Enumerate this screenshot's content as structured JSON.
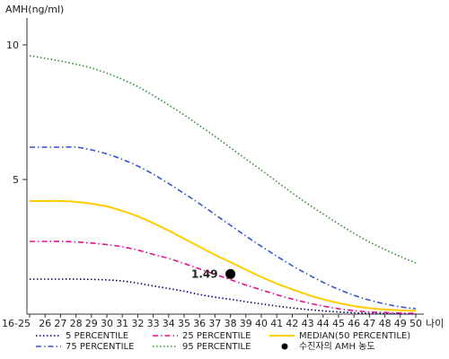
{
  "chart_data": {
    "type": "line",
    "ylabel": "AMH(ng/ml)",
    "xlabel": "나이",
    "ylim": [
      0,
      11
    ],
    "y_ticks": [
      5,
      10
    ],
    "categories": [
      "16-25",
      "26",
      "27",
      "28",
      "29",
      "30",
      "31",
      "32",
      "33",
      "34",
      "35",
      "36",
      "37",
      "38",
      "39",
      "40",
      "41",
      "42",
      "43",
      "44",
      "45",
      "46",
      "47",
      "48",
      "49",
      "50"
    ],
    "series": [
      {
        "name": "5 PERCENTILE",
        "color": "#000080",
        "dash": "dotted",
        "values": [
          1.3,
          1.3,
          1.3,
          1.3,
          1.29,
          1.27,
          1.23,
          1.15,
          1.05,
          0.95,
          0.85,
          0.73,
          0.63,
          0.55,
          0.46,
          0.38,
          0.3,
          0.23,
          0.17,
          0.12,
          0.08,
          0.05,
          0.03,
          0.02,
          0.01,
          0.0
        ]
      },
      {
        "name": "25 PERCENTILE",
        "color": "#e0108f",
        "dash": "dashdot",
        "values": [
          2.7,
          2.7,
          2.7,
          2.68,
          2.64,
          2.58,
          2.5,
          2.38,
          2.22,
          2.07,
          1.88,
          1.68,
          1.48,
          1.28,
          1.08,
          0.9,
          0.72,
          0.56,
          0.42,
          0.3,
          0.2,
          0.13,
          0.08,
          0.06,
          0.04,
          0.03
        ]
      },
      {
        "name": "MEDIAN(50 PERCENTILE)",
        "color": "#ffcc00",
        "dash": "solid",
        "values": [
          4.2,
          4.2,
          4.2,
          4.17,
          4.1,
          4.0,
          3.83,
          3.63,
          3.38,
          3.1,
          2.8,
          2.5,
          2.2,
          1.93,
          1.65,
          1.38,
          1.13,
          0.92,
          0.72,
          0.55,
          0.41,
          0.3,
          0.22,
          0.17,
          0.14,
          0.12
        ]
      },
      {
        "name": "75 PERCENTILE",
        "color": "#3355cc",
        "dash": "dashdot",
        "values": [
          6.2,
          6.2,
          6.2,
          6.2,
          6.1,
          5.95,
          5.75,
          5.5,
          5.2,
          4.85,
          4.48,
          4.1,
          3.7,
          3.3,
          2.9,
          2.52,
          2.15,
          1.8,
          1.48,
          1.18,
          0.92,
          0.7,
          0.52,
          0.38,
          0.27,
          0.2
        ]
      },
      {
        "name": "95 PERCENTILE",
        "color": "#2e8b2e",
        "dash": "dotted",
        "values": [
          9.6,
          9.5,
          9.4,
          9.28,
          9.14,
          8.95,
          8.72,
          8.45,
          8.12,
          7.77,
          7.4,
          7.0,
          6.6,
          6.18,
          5.76,
          5.35,
          4.92,
          4.5,
          4.1,
          3.72,
          3.35,
          3.0,
          2.68,
          2.4,
          2.14,
          1.9
        ]
      }
    ],
    "marker": {
      "name": "수진자의 AMH 농도",
      "x": "38",
      "y": 1.49,
      "label": "1.49",
      "color": "#000000"
    },
    "legend_position": "bottom"
  }
}
